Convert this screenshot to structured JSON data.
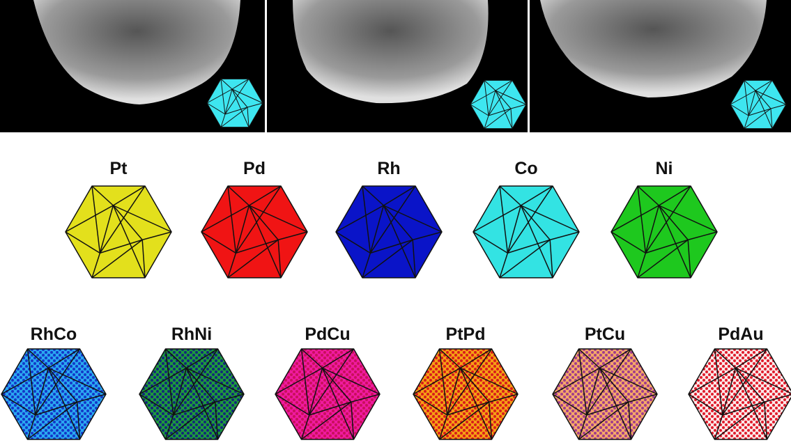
{
  "top_row": [
    {
      "label": "Pt",
      "color": "#e3e01c"
    },
    {
      "label": "Pd",
      "color": "#f01414"
    },
    {
      "label": "Rh",
      "color": "#0a14c8"
    },
    {
      "label": "Co",
      "color": "#33e3e3"
    },
    {
      "label": "Ni",
      "color": "#1ec81e"
    }
  ],
  "bottom_row": [
    {
      "label": "RhCo",
      "color": "#2aa8f0",
      "dot_color": "#1437c8"
    },
    {
      "label": "RhNi",
      "color": "#1e9a3c",
      "dot_color": "#12287a"
    },
    {
      "label": "PdCu",
      "color": "#f01aa0",
      "dot_color": "#c8105a"
    },
    {
      "label": "PtPd",
      "color": "#f5a014",
      "dot_color": "#d81c1c"
    },
    {
      "label": "PtCu",
      "color": "#f5a868",
      "dot_color": "#a03c8c"
    },
    {
      "label": "PdAu",
      "color": "#fbe8e8",
      "dot_color": "#e01c2c"
    }
  ]
}
